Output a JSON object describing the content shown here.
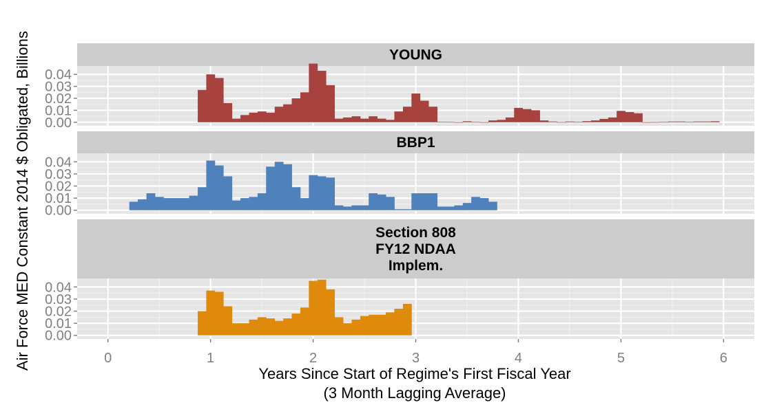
{
  "chart_data": {
    "type": "bar",
    "xlabel_lines": [
      "Years Since Start of Regime's First Fiscal Year",
      "(3 Month Lagging Average)"
    ],
    "ylabel": "Air Force MED Constant 2014 $ Obligated, Billions",
    "xlim": [
      -0.3,
      6.3
    ],
    "x_ticks": [
      0,
      1,
      2,
      3,
      4,
      5,
      6
    ],
    "ylim": [
      -0.003,
      0.047
    ],
    "y_ticks": [
      0.0,
      0.01,
      0.02,
      0.03,
      0.04
    ],
    "y_tick_labels": [
      "0.00",
      "0.01",
      "0.02",
      "0.03",
      "0.04"
    ],
    "bar_width": 0.0833,
    "grid": true,
    "legend": "none",
    "panels": [
      {
        "name": "young",
        "strip_lines": [
          "YOUNG"
        ],
        "color": "#A8423F",
        "x": [
          0.917,
          1.0,
          1.083,
          1.167,
          1.25,
          1.333,
          1.417,
          1.5,
          1.583,
          1.667,
          1.75,
          1.833,
          1.917,
          2.0,
          2.083,
          2.167,
          2.25,
          2.333,
          2.417,
          2.5,
          2.583,
          2.667,
          2.75,
          2.833,
          2.917,
          3.0,
          3.083,
          3.167,
          3.25,
          3.333,
          3.417,
          3.5,
          3.583,
          3.667,
          3.75,
          3.833,
          3.917,
          4.0,
          4.083,
          4.167,
          4.25,
          4.333,
          4.417,
          4.5,
          4.583,
          4.667,
          4.75,
          4.833,
          4.917,
          5.0,
          5.083,
          5.167,
          5.25,
          5.333,
          5.417,
          5.5,
          5.583,
          5.667,
          5.75,
          5.833,
          5.917
        ],
        "values": [
          0.027,
          0.04,
          0.037,
          0.016,
          0.003,
          0.006,
          0.008,
          0.009,
          0.008,
          0.013,
          0.015,
          0.02,
          0.025,
          0.049,
          0.043,
          0.031,
          0.003,
          0.004,
          0.005,
          0.003,
          0.005,
          0.003,
          0.002,
          0.009,
          0.013,
          0.024,
          0.018,
          0.013,
          0.0004,
          0.0003,
          0.0001,
          0.0008,
          0.0003,
          0.0001,
          0.0015,
          0.002,
          0.004,
          0.012,
          0.011,
          0.01,
          0.0015,
          0.0006,
          0.0002,
          0.0006,
          0.0004,
          0.0009,
          0.0015,
          0.0028,
          0.004,
          0.0095,
          0.0085,
          0.0075,
          0.0001,
          0.0002,
          0.0003,
          0.0006,
          0.0006,
          0.0004,
          0.0006,
          0.0006,
          0.0008
        ]
      },
      {
        "name": "bbp1",
        "strip_lines": [
          "BBP1"
        ],
        "color": "#4F81BD",
        "x": [
          0.25,
          0.333,
          0.417,
          0.5,
          0.583,
          0.667,
          0.75,
          0.833,
          0.917,
          1.0,
          1.083,
          1.167,
          1.25,
          1.333,
          1.417,
          1.5,
          1.583,
          1.667,
          1.75,
          1.833,
          1.917,
          2.0,
          2.083,
          2.167,
          2.25,
          2.333,
          2.417,
          2.5,
          2.583,
          2.667,
          2.75,
          2.833,
          2.917,
          3.0,
          3.083,
          3.167,
          3.25,
          3.333,
          3.417,
          3.5,
          3.583,
          3.667,
          3.75
        ],
        "values": [
          0.007,
          0.009,
          0.014,
          0.011,
          0.01,
          0.01,
          0.01,
          0.012,
          0.019,
          0.041,
          0.037,
          0.028,
          0.008,
          0.01,
          0.011,
          0.014,
          0.036,
          0.04,
          0.038,
          0.019,
          0.01,
          0.029,
          0.028,
          0.027,
          0.004,
          0.003,
          0.004,
          0.004,
          0.014,
          0.013,
          0.011,
          0.0008,
          0.0008,
          0.014,
          0.014,
          0.014,
          0.003,
          0.003,
          0.004,
          0.006,
          0.011,
          0.01,
          0.007
        ]
      },
      {
        "name": "section-808",
        "strip_lines": [
          "Section 808",
          "FY12 NDAA",
          "Implem."
        ],
        "color": "#E08A0B",
        "x": [
          0.917,
          1.0,
          1.083,
          1.167,
          1.25,
          1.333,
          1.417,
          1.5,
          1.583,
          1.667,
          1.75,
          1.833,
          1.917,
          2.0,
          2.083,
          2.167,
          2.25,
          2.333,
          2.417,
          2.5,
          2.583,
          2.667,
          2.75,
          2.833,
          2.917
        ],
        "values": [
          0.02,
          0.037,
          0.036,
          0.024,
          0.01,
          0.01,
          0.013,
          0.015,
          0.014,
          0.012,
          0.014,
          0.018,
          0.023,
          0.045,
          0.046,
          0.038,
          0.015,
          0.01,
          0.013,
          0.016,
          0.017,
          0.017,
          0.019,
          0.022,
          0.026
        ]
      }
    ]
  }
}
